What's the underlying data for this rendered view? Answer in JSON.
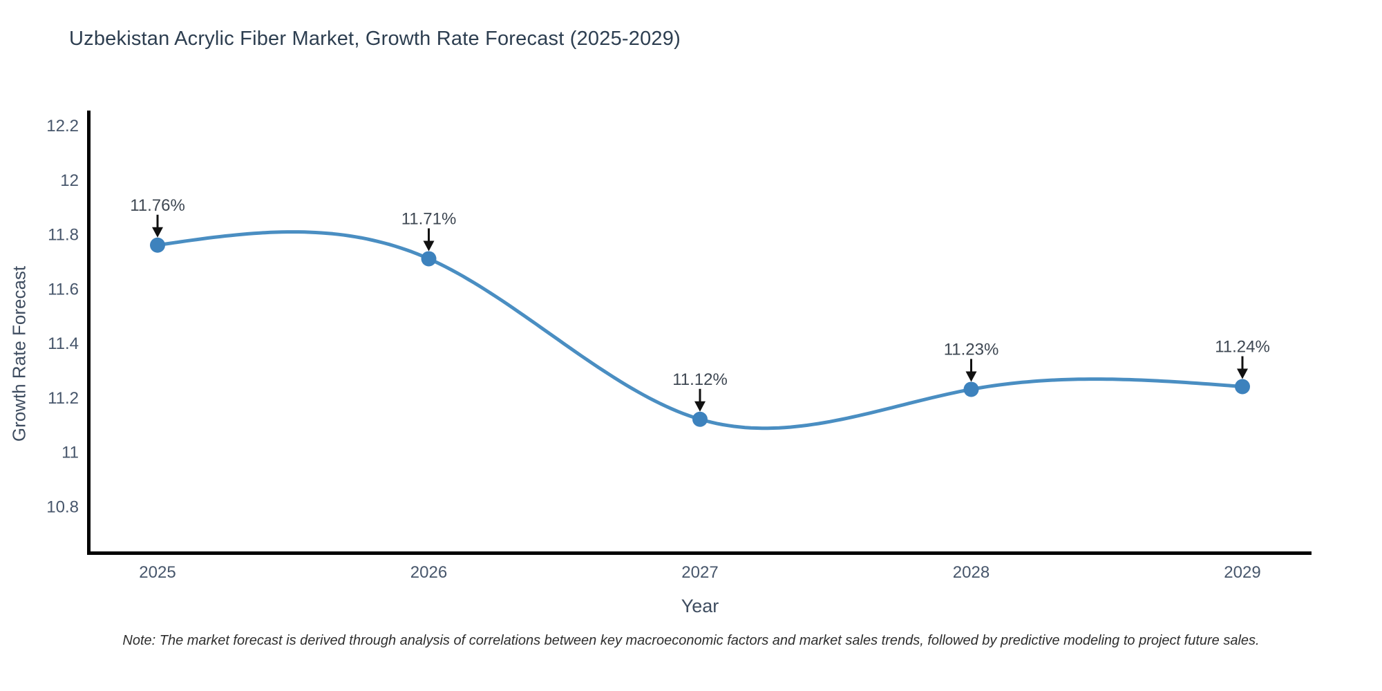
{
  "chart": {
    "title": "Uzbekistan Acrylic Fiber Market, Growth Rate Forecast (2025-2029)",
    "xlabel": "Year",
    "ylabel": "Growth Rate Forecast",
    "note": "Note: The market forecast is derived through analysis of correlations between key macroeconomic factors and market sales trends, followed by predictive modeling to project future sales."
  },
  "chart_data": {
    "type": "line",
    "title": "Uzbekistan Acrylic Fiber Market, Growth Rate Forecast (2025-2029)",
    "xlabel": "Year",
    "ylabel": "Growth Rate Forecast",
    "x": [
      2025,
      2026,
      2027,
      2028,
      2029
    ],
    "values": [
      11.76,
      11.71,
      11.12,
      11.23,
      11.24
    ],
    "point_labels": [
      "11.76%",
      "11.71%",
      "11.12%",
      "11.23%",
      "11.24%"
    ],
    "x_tick_labels": [
      "2025",
      "2026",
      "2027",
      "2028",
      "2029"
    ],
    "y_ticks": [
      10.8,
      11,
      11.2,
      11.4,
      11.6,
      11.8,
      12,
      12.2
    ],
    "y_tick_labels": [
      "10.8",
      "11",
      "11.2",
      "11.4",
      "11.6",
      "11.8",
      "12",
      "12.2"
    ],
    "ylim": [
      10.63,
      12.26
    ],
    "line_shape": "spline",
    "grid": false,
    "legend": "none",
    "annotation_style": "value labels with downward black arrows",
    "colors": {
      "line": "#4a8ec2",
      "marker": "#3d82bd",
      "axis": "#000000",
      "annotation_arrow": "#111111",
      "title": "#2d3e50",
      "tick": "#47566b",
      "background": "#ffffff"
    }
  }
}
